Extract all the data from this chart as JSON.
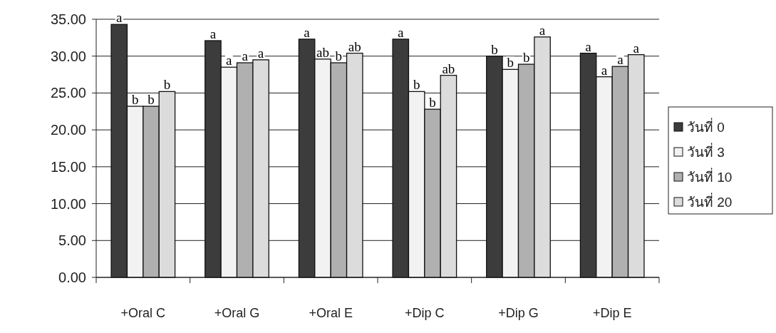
{
  "chart_data": {
    "type": "bar",
    "categories": [
      "+Oral C",
      "+Oral G",
      "+Oral E",
      "+Dip C",
      "+Dip G",
      "+Dip E"
    ],
    "series": [
      {
        "name": "วันที่ 0",
        "color": "#3c3c3c",
        "values": [
          34.3,
          32.1,
          32.3,
          32.3,
          30.0,
          30.4
        ],
        "value_labels": [
          "a",
          "a",
          "a",
          "a",
          "b",
          "a"
        ]
      },
      {
        "name": "วันที่ 3",
        "color": "#f2f2f2",
        "values": [
          23.2,
          28.5,
          29.6,
          25.2,
          28.2,
          27.2
        ],
        "value_labels": [
          "b",
          "a",
          "ab",
          "b",
          "b",
          "a"
        ]
      },
      {
        "name": "วันที่ 10",
        "color": "#b0b0b0",
        "values": [
          23.2,
          29.1,
          29.1,
          22.8,
          28.9,
          28.6
        ],
        "value_labels": [
          "b",
          "a",
          "b",
          "b",
          "b",
          "a"
        ]
      },
      {
        "name": "วันที่ 20",
        "color": "#dcdcdc",
        "values": [
          25.2,
          29.5,
          30.4,
          27.4,
          32.6,
          30.2
        ],
        "value_labels": [
          "b",
          "a",
          "ab",
          "ab",
          "a",
          "a"
        ]
      }
    ],
    "ylim": [
      0,
      35
    ],
    "yticks": [
      {
        "value": 0,
        "label": "0.00"
      },
      {
        "value": 5,
        "label": "5.00"
      },
      {
        "value": 10,
        "label": "10.00"
      },
      {
        "value": 15,
        "label": "15.00"
      },
      {
        "value": 20,
        "label": "20.00"
      },
      {
        "value": 25,
        "label": "25.00"
      },
      {
        "value": 30,
        "label": "30.00"
      },
      {
        "value": 35,
        "label": "35.00"
      }
    ],
    "grid": "y",
    "legend": "right"
  }
}
